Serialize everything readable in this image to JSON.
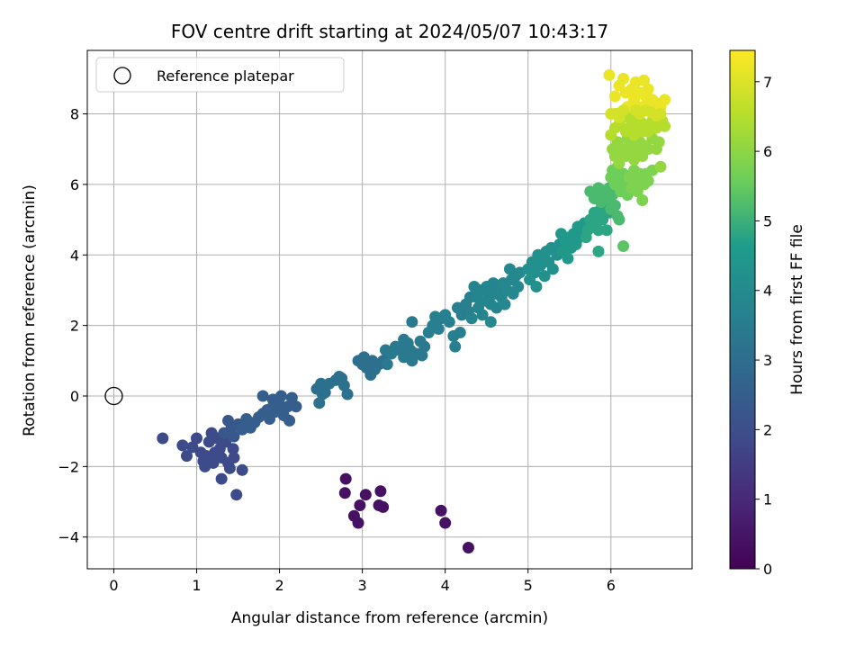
{
  "chart_data": {
    "type": "scatter",
    "title": "FOV centre drift starting at 2024/05/07 10:43:17",
    "xlabel": "Angular distance from reference (arcmin)",
    "ylabel": "Rotation from reference (arcmin)",
    "xlim": [
      -0.32,
      6.98
    ],
    "ylim": [
      -4.9,
      9.8
    ],
    "xticks": [
      0,
      1,
      2,
      3,
      4,
      5,
      6
    ],
    "yticks": [
      -4,
      -2,
      0,
      2,
      4,
      6,
      8
    ],
    "grid": true,
    "legend": {
      "position": "upper-left",
      "entries": [
        {
          "label": "Reference platepar",
          "marker": "open-circle"
        }
      ]
    },
    "reference_point": {
      "x": 0,
      "y": 0
    },
    "colorbar": {
      "label": "Hours from first FF file",
      "colormap": "viridis",
      "range": [
        0,
        7.45
      ],
      "ticks": [
        0,
        1,
        2,
        3,
        4,
        5,
        6,
        7
      ]
    },
    "x_column_order": [
      "x",
      "y",
      "hours"
    ],
    "points": [
      [
        2.8,
        -2.35,
        0.4
      ],
      [
        2.79,
        -2.75,
        0.4
      ],
      [
        2.9,
        -3.4,
        0.4
      ],
      [
        2.95,
        -3.6,
        0.4
      ],
      [
        2.97,
        -3.1,
        0.4
      ],
      [
        3.04,
        -2.8,
        0.4
      ],
      [
        3.2,
        -3.1,
        0.4
      ],
      [
        3.22,
        -2.7,
        0.4
      ],
      [
        3.25,
        -3.15,
        0.4
      ],
      [
        3.95,
        -3.25,
        0.4
      ],
      [
        4.0,
        -3.6,
        0.4
      ],
      [
        4.28,
        -4.3,
        0.4
      ],
      [
        0.59,
        -1.2,
        1.9
      ],
      [
        0.83,
        -1.4,
        1.9
      ],
      [
        0.88,
        -1.7,
        1.9
      ],
      [
        0.95,
        -1.45,
        1.9
      ],
      [
        1.0,
        -1.2,
        1.9
      ],
      [
        1.05,
        -1.6,
        1.9
      ],
      [
        1.08,
        -1.85,
        1.9
      ],
      [
        1.1,
        -2.0,
        1.9
      ],
      [
        1.15,
        -1.3,
        1.9
      ],
      [
        1.18,
        -1.05,
        1.9
      ],
      [
        1.2,
        -1.9,
        1.9
      ],
      [
        1.25,
        -1.2,
        1.9
      ],
      [
        1.28,
        -1.5,
        1.9
      ],
      [
        1.3,
        -2.35,
        1.9
      ],
      [
        1.3,
        -1.75,
        1.9
      ],
      [
        1.35,
        -1.3,
        1.9
      ],
      [
        1.38,
        -1.9,
        1.9
      ],
      [
        1.4,
        -2.05,
        1.9
      ],
      [
        1.44,
        -1.5,
        1.9
      ],
      [
        1.45,
        -1.75,
        1.9
      ],
      [
        1.48,
        -2.8,
        1.9
      ],
      [
        1.55,
        -2.1,
        1.9
      ],
      [
        1.22,
        -1.6,
        1.9
      ],
      [
        1.12,
        -1.7,
        1.9
      ],
      [
        1.33,
        -1.05,
        2.3
      ],
      [
        1.38,
        -0.7,
        2.3
      ],
      [
        1.42,
        -0.9,
        2.3
      ],
      [
        1.45,
        -1.15,
        2.3
      ],
      [
        1.5,
        -0.8,
        2.3
      ],
      [
        1.55,
        -0.95,
        2.5
      ],
      [
        1.6,
        -0.8,
        2.5
      ],
      [
        1.6,
        -0.65,
        2.5
      ],
      [
        1.65,
        -0.9,
        2.5
      ],
      [
        1.7,
        -0.75,
        2.5
      ],
      [
        1.75,
        -0.6,
        2.5
      ],
      [
        1.8,
        -0.5,
        2.5
      ],
      [
        1.85,
        -0.4,
        2.5
      ],
      [
        1.88,
        -0.65,
        2.5
      ],
      [
        1.9,
        -0.35,
        2.5
      ],
      [
        1.95,
        -0.45,
        2.5
      ],
      [
        2.0,
        -0.25,
        2.5
      ],
      [
        2.05,
        -0.55,
        2.5
      ],
      [
        2.1,
        -0.3,
        2.5
      ],
      [
        2.12,
        -0.7,
        2.5
      ],
      [
        2.15,
        -0.05,
        2.5
      ],
      [
        2.02,
        0.0,
        2.5
      ],
      [
        1.92,
        -0.1,
        2.5
      ],
      [
        1.8,
        0.0,
        2.5
      ],
      [
        2.2,
        -0.3,
        2.5
      ],
      [
        2.45,
        0.2,
        3.1
      ],
      [
        2.5,
        0.35,
        3.1
      ],
      [
        2.52,
        0.05,
        3.1
      ],
      [
        2.48,
        -0.2,
        3.1
      ],
      [
        2.55,
        0.1,
        3.1
      ],
      [
        2.6,
        0.35,
        3.1
      ],
      [
        2.68,
        0.45,
        3.1
      ],
      [
        2.75,
        0.5,
        3.1
      ],
      [
        2.78,
        0.3,
        3.1
      ],
      [
        2.72,
        0.55,
        3.1
      ],
      [
        2.82,
        0.05,
        3.1
      ],
      [
        2.95,
        1.0,
        3.1
      ],
      [
        3.0,
        0.9,
        3.1
      ],
      [
        3.02,
        1.1,
        3.1
      ],
      [
        3.05,
        0.8,
        3.1
      ],
      [
        3.1,
        0.6,
        3.1
      ],
      [
        3.12,
        1.0,
        3.1
      ],
      [
        3.15,
        0.75,
        3.1
      ],
      [
        3.2,
        0.9,
        3.1
      ],
      [
        3.25,
        1.0,
        3.1
      ],
      [
        3.28,
        1.3,
        3.4
      ],
      [
        3.3,
        0.9,
        3.4
      ],
      [
        3.35,
        1.2,
        3.4
      ],
      [
        3.4,
        1.4,
        3.4
      ],
      [
        3.45,
        1.3,
        3.4
      ],
      [
        3.5,
        1.1,
        3.4
      ],
      [
        3.55,
        1.5,
        3.4
      ],
      [
        3.58,
        1.3,
        3.4
      ],
      [
        3.6,
        1.0,
        3.4
      ],
      [
        3.65,
        1.2,
        3.4
      ],
      [
        3.7,
        1.55,
        3.4
      ],
      [
        3.72,
        1.15,
        3.4
      ],
      [
        3.75,
        1.4,
        3.4
      ],
      [
        3.6,
        2.1,
        3.4
      ],
      [
        3.5,
        1.6,
        3.4
      ],
      [
        3.8,
        1.8,
        3.6
      ],
      [
        3.85,
        2.0,
        3.6
      ],
      [
        3.88,
        2.25,
        3.6
      ],
      [
        3.92,
        1.9,
        3.6
      ],
      [
        3.95,
        2.2,
        3.6
      ],
      [
        4.0,
        2.3,
        3.6
      ],
      [
        4.05,
        2.1,
        3.6
      ],
      [
        4.1,
        1.7,
        3.6
      ],
      [
        4.12,
        1.4,
        3.6
      ],
      [
        4.18,
        1.8,
        3.6
      ],
      [
        4.15,
        2.5,
        3.6
      ],
      [
        4.2,
        2.3,
        3.6
      ],
      [
        4.25,
        2.6,
        3.6
      ],
      [
        4.28,
        2.4,
        3.6
      ],
      [
        4.3,
        2.8,
        3.6
      ],
      [
        4.32,
        2.2,
        3.8
      ],
      [
        4.35,
        3.1,
        3.8
      ],
      [
        4.38,
        2.8,
        3.8
      ],
      [
        4.4,
        2.5,
        3.8
      ],
      [
        4.42,
        3.0,
        3.8
      ],
      [
        4.45,
        2.3,
        3.8
      ],
      [
        4.48,
        2.7,
        3.8
      ],
      [
        4.5,
        3.1,
        3.8
      ],
      [
        4.52,
        2.9,
        3.8
      ],
      [
        4.55,
        2.6,
        3.8
      ],
      [
        4.58,
        3.2,
        3.8
      ],
      [
        4.6,
        2.9,
        3.8
      ],
      [
        4.62,
        2.5,
        3.8
      ],
      [
        4.65,
        3.1,
        3.8
      ],
      [
        4.68,
        2.8,
        3.8
      ],
      [
        4.7,
        3.2,
        3.9
      ],
      [
        4.72,
        2.6,
        3.9
      ],
      [
        4.75,
        3.0,
        3.9
      ],
      [
        4.78,
        3.6,
        3.9
      ],
      [
        4.8,
        3.3,
        3.9
      ],
      [
        4.82,
        2.9,
        3.9
      ],
      [
        4.85,
        3.4,
        3.9
      ],
      [
        4.88,
        3.1,
        3.9
      ],
      [
        4.9,
        3.5,
        3.9
      ],
      [
        4.55,
        2.1,
        3.9
      ],
      [
        5.0,
        3.6,
        4.2
      ],
      [
        5.02,
        3.3,
        4.2
      ],
      [
        5.05,
        3.8,
        4.2
      ],
      [
        5.08,
        3.5,
        4.2
      ],
      [
        5.1,
        3.1,
        4.2
      ],
      [
        5.12,
        4.0,
        4.2
      ],
      [
        5.15,
        3.7,
        4.2
      ],
      [
        5.18,
        3.9,
        4.2
      ],
      [
        5.2,
        3.4,
        4.2
      ],
      [
        5.22,
        4.1,
        4.2
      ],
      [
        5.25,
        3.8,
        4.2
      ],
      [
        5.28,
        4.2,
        4.2
      ],
      [
        5.3,
        3.6,
        4.2
      ],
      [
        5.35,
        4.0,
        4.2
      ],
      [
        5.38,
        4.3,
        4.2
      ],
      [
        5.4,
        4.6,
        4.5
      ],
      [
        5.42,
        4.1,
        4.5
      ],
      [
        5.45,
        4.4,
        4.5
      ],
      [
        5.48,
        3.9,
        4.5
      ],
      [
        5.5,
        4.5,
        4.5
      ],
      [
        5.52,
        4.2,
        4.5
      ],
      [
        5.55,
        4.6,
        4.5
      ],
      [
        5.58,
        4.3,
        4.5
      ],
      [
        5.6,
        4.8,
        4.5
      ],
      [
        5.62,
        4.5,
        4.5
      ],
      [
        5.65,
        4.6,
        4.5
      ],
      [
        5.68,
        4.9,
        4.5
      ],
      [
        5.7,
        4.5,
        4.8
      ],
      [
        5.72,
        4.7,
        4.8
      ],
      [
        5.75,
        5.0,
        4.8
      ],
      [
        5.78,
        4.8,
        4.8
      ],
      [
        5.8,
        5.2,
        4.8
      ],
      [
        5.82,
        5.0,
        4.8
      ],
      [
        5.85,
        4.7,
        4.8
      ],
      [
        5.88,
        5.3,
        4.8
      ],
      [
        5.9,
        5.0,
        4.8
      ],
      [
        5.92,
        5.4,
        4.8
      ],
      [
        5.85,
        4.1,
        4.8
      ],
      [
        5.95,
        4.7,
        4.8
      ],
      [
        5.98,
        5.2,
        4.8
      ],
      [
        5.75,
        5.8,
        5.2
      ],
      [
        5.8,
        5.6,
        5.2
      ],
      [
        5.85,
        5.9,
        5.2
      ],
      [
        5.88,
        5.5,
        5.2
      ],
      [
        5.9,
        5.8,
        5.2
      ],
      [
        5.95,
        5.6,
        5.2
      ],
      [
        5.98,
        5.9,
        5.2
      ],
      [
        6.0,
        5.3,
        5.2
      ],
      [
        6.02,
        5.7,
        5.2
      ],
      [
        6.05,
        5.4,
        5.2
      ],
      [
        6.08,
        5.1,
        5.2
      ],
      [
        6.1,
        5.0,
        5.2
      ],
      [
        6.15,
        4.25,
        5.4
      ],
      [
        6.0,
        6.2,
        5.6
      ],
      [
        6.02,
        6.4,
        5.6
      ],
      [
        6.05,
        6.0,
        5.6
      ],
      [
        6.08,
        6.5,
        5.6
      ],
      [
        6.1,
        6.2,
        5.6
      ],
      [
        6.12,
        5.8,
        5.6
      ],
      [
        6.15,
        6.3,
        5.6
      ],
      [
        6.18,
        6.0,
        5.6
      ],
      [
        6.2,
        5.7,
        5.6
      ],
      [
        6.22,
        6.2,
        5.8
      ],
      [
        6.25,
        5.9,
        5.8
      ],
      [
        6.28,
        6.4,
        5.8
      ],
      [
        6.3,
        6.1,
        5.8
      ],
      [
        6.32,
        5.8,
        5.8
      ],
      [
        6.35,
        6.3,
        5.8
      ],
      [
        6.38,
        5.55,
        5.8
      ],
      [
        6.4,
        6.0,
        5.8
      ],
      [
        6.42,
        6.3,
        5.8
      ],
      [
        6.45,
        6.1,
        5.8
      ],
      [
        6.5,
        6.4,
        5.8
      ],
      [
        6.02,
        7.0,
        6.1
      ],
      [
        6.05,
        6.8,
        6.1
      ],
      [
        6.08,
        7.2,
        6.1
      ],
      [
        6.1,
        6.6,
        6.1
      ],
      [
        6.15,
        7.0,
        6.1
      ],
      [
        6.18,
        6.8,
        6.1
      ],
      [
        6.2,
        7.3,
        6.1
      ],
      [
        6.22,
        6.9,
        6.1
      ],
      [
        6.25,
        7.1,
        6.1
      ],
      [
        6.28,
        6.7,
        6.1
      ],
      [
        6.3,
        7.3,
        6.1
      ],
      [
        6.32,
        6.9,
        6.1
      ],
      [
        6.35,
        7.2,
        6.1
      ],
      [
        6.38,
        6.8,
        6.1
      ],
      [
        6.4,
        7.1,
        6.1
      ],
      [
        6.45,
        7.0,
        6.1
      ],
      [
        6.5,
        7.3,
        6.1
      ],
      [
        6.55,
        7.0,
        6.1
      ],
      [
        6.6,
        6.5,
        6.1
      ],
      [
        6.58,
        7.2,
        6.1
      ],
      [
        6.0,
        7.4,
        6.5
      ],
      [
        6.05,
        7.6,
        6.5
      ],
      [
        6.08,
        8.0,
        6.5
      ],
      [
        6.1,
        7.7,
        6.5
      ],
      [
        6.15,
        7.9,
        6.5
      ],
      [
        6.18,
        7.5,
        6.5
      ],
      [
        6.2,
        8.0,
        6.5
      ],
      [
        6.22,
        7.6,
        6.5
      ],
      [
        6.25,
        7.8,
        6.5
      ],
      [
        6.28,
        7.4,
        6.5
      ],
      [
        6.3,
        7.9,
        6.5
      ],
      [
        6.32,
        7.6,
        6.5
      ],
      [
        6.35,
        7.8,
        6.5
      ],
      [
        6.38,
        7.5,
        6.5
      ],
      [
        6.4,
        7.7,
        6.5
      ],
      [
        6.45,
        7.5,
        6.5
      ],
      [
        6.5,
        7.8,
        6.5
      ],
      [
        6.55,
        7.6,
        6.5
      ],
      [
        6.62,
        7.8,
        6.5
      ],
      [
        6.65,
        7.65,
        6.5
      ],
      [
        5.98,
        9.1,
        7.2
      ],
      [
        6.05,
        8.5,
        7.2
      ],
      [
        6.1,
        8.8,
        7.2
      ],
      [
        6.15,
        9.0,
        7.2
      ],
      [
        6.18,
        8.6,
        7.2
      ],
      [
        6.2,
        8.2,
        7.2
      ],
      [
        6.25,
        8.7,
        7.2
      ],
      [
        6.28,
        8.4,
        7.2
      ],
      [
        6.3,
        8.9,
        7.2
      ],
      [
        6.35,
        8.6,
        7.2
      ],
      [
        6.38,
        8.2,
        7.2
      ],
      [
        6.4,
        8.95,
        7.2
      ],
      [
        6.42,
        8.5,
        7.2
      ],
      [
        6.45,
        8.7,
        7.2
      ],
      [
        6.48,
        8.3,
        7.2
      ],
      [
        6.5,
        8.4,
        7.2
      ],
      [
        6.52,
        8.1,
        7.2
      ],
      [
        6.55,
        8.3,
        7.2
      ],
      [
        6.6,
        8.2,
        7.2
      ],
      [
        6.65,
        8.4,
        7.2
      ],
      [
        6.0,
        8.0,
        6.9
      ],
      [
        6.05,
        8.0,
        6.9
      ],
      [
        6.1,
        7.9,
        6.9
      ],
      [
        6.15,
        8.1,
        6.9
      ],
      [
        6.3,
        8.1,
        6.9
      ],
      [
        6.35,
        8.0,
        6.9
      ],
      [
        6.42,
        8.1,
        6.9
      ],
      [
        6.48,
        8.05,
        6.9
      ],
      [
        6.55,
        7.95,
        6.9
      ],
      [
        6.6,
        8.0,
        6.9
      ]
    ]
  }
}
